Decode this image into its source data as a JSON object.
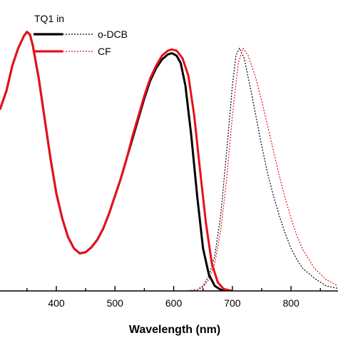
{
  "chart_data": {
    "type": "line",
    "title": "",
    "xlabel": "Wavelength (nm)",
    "ylabel": "",
    "xlim": [
      304,
      880
    ],
    "ylim": [
      0,
      1.06
    ],
    "x_ticks": [
      400,
      500,
      600,
      700,
      800
    ],
    "x_tick_labels": [
      "400",
      "500",
      "600",
      "700",
      "800"
    ],
    "y_ticks_shown": false,
    "grid": false,
    "legend": {
      "title": "TQ1 in",
      "placement": "top-left",
      "entries": [
        "o-DCB",
        "CF"
      ]
    },
    "series": [
      {
        "name": "o-DCB",
        "kind": "absorption",
        "color": "#000000",
        "style": "solid",
        "points": [
          [
            304,
            0.725
          ],
          [
            315,
            0.8
          ],
          [
            325,
            0.9
          ],
          [
            335,
            0.97
          ],
          [
            345,
            1.02
          ],
          [
            350,
            1.035
          ],
          [
            355,
            1.025
          ],
          [
            360,
            0.98
          ],
          [
            370,
            0.85
          ],
          [
            380,
            0.69
          ],
          [
            390,
            0.53
          ],
          [
            400,
            0.39
          ],
          [
            410,
            0.29
          ],
          [
            420,
            0.215
          ],
          [
            430,
            0.17
          ],
          [
            440,
            0.15
          ],
          [
            450,
            0.155
          ],
          [
            460,
            0.175
          ],
          [
            470,
            0.205
          ],
          [
            480,
            0.25
          ],
          [
            490,
            0.31
          ],
          [
            500,
            0.38
          ],
          [
            510,
            0.45
          ],
          [
            520,
            0.53
          ],
          [
            530,
            0.61
          ],
          [
            540,
            0.69
          ],
          [
            550,
            0.77
          ],
          [
            560,
            0.84
          ],
          [
            570,
            0.89
          ],
          [
            580,
            0.925
          ],
          [
            590,
            0.945
          ],
          [
            597,
            0.95
          ],
          [
            605,
            0.94
          ],
          [
            612,
            0.91
          ],
          [
            620,
            0.82
          ],
          [
            630,
            0.62
          ],
          [
            640,
            0.38
          ],
          [
            650,
            0.17
          ],
          [
            660,
            0.065
          ],
          [
            670,
            0.02
          ],
          [
            680,
            0.005
          ],
          [
            690,
            0.0
          ]
        ]
      },
      {
        "name": "CF",
        "kind": "absorption",
        "color": "#e8101a",
        "style": "solid",
        "points": [
          [
            304,
            0.725
          ],
          [
            315,
            0.8
          ],
          [
            325,
            0.9
          ],
          [
            335,
            0.97
          ],
          [
            345,
            1.02
          ],
          [
            350,
            1.035
          ],
          [
            355,
            1.025
          ],
          [
            360,
            0.98
          ],
          [
            370,
            0.85
          ],
          [
            380,
            0.69
          ],
          [
            390,
            0.53
          ],
          [
            400,
            0.39
          ],
          [
            410,
            0.29
          ],
          [
            420,
            0.215
          ],
          [
            430,
            0.17
          ],
          [
            440,
            0.15
          ],
          [
            450,
            0.155
          ],
          [
            460,
            0.175
          ],
          [
            470,
            0.205
          ],
          [
            480,
            0.25
          ],
          [
            490,
            0.31
          ],
          [
            500,
            0.38
          ],
          [
            510,
            0.45
          ],
          [
            520,
            0.53
          ],
          [
            530,
            0.62
          ],
          [
            540,
            0.7
          ],
          [
            550,
            0.78
          ],
          [
            560,
            0.85
          ],
          [
            570,
            0.9
          ],
          [
            580,
            0.94
          ],
          [
            590,
            0.96
          ],
          [
            597,
            0.965
          ],
          [
            605,
            0.96
          ],
          [
            615,
            0.93
          ],
          [
            625,
            0.86
          ],
          [
            635,
            0.7
          ],
          [
            645,
            0.48
          ],
          [
            655,
            0.27
          ],
          [
            665,
            0.11
          ],
          [
            675,
            0.035
          ],
          [
            685,
            0.008
          ],
          [
            700,
            0.0
          ]
        ]
      },
      {
        "name": "o-DCB",
        "kind": "emission",
        "color": "#000000",
        "style": "dotted",
        "points": [
          [
            620,
            0.0
          ],
          [
            640,
            0.005
          ],
          [
            650,
            0.02
          ],
          [
            660,
            0.06
          ],
          [
            670,
            0.14
          ],
          [
            680,
            0.3
          ],
          [
            690,
            0.55
          ],
          [
            700,
            0.82
          ],
          [
            706,
            0.94
          ],
          [
            712,
            0.97
          ],
          [
            720,
            0.93
          ],
          [
            730,
            0.82
          ],
          [
            740,
            0.7
          ],
          [
            750,
            0.58
          ],
          [
            760,
            0.47
          ],
          [
            770,
            0.38
          ],
          [
            780,
            0.3
          ],
          [
            790,
            0.23
          ],
          [
            800,
            0.17
          ],
          [
            810,
            0.125
          ],
          [
            820,
            0.09
          ],
          [
            840,
            0.05
          ],
          [
            860,
            0.02
          ],
          [
            880,
            0.01
          ]
        ]
      },
      {
        "name": "CF",
        "kind": "emission",
        "color": "#e8101a",
        "style": "dotted",
        "points": [
          [
            620,
            0.0
          ],
          [
            640,
            0.004
          ],
          [
            650,
            0.015
          ],
          [
            660,
            0.045
          ],
          [
            670,
            0.11
          ],
          [
            680,
            0.24
          ],
          [
            690,
            0.44
          ],
          [
            700,
            0.7
          ],
          [
            710,
            0.91
          ],
          [
            718,
            0.97
          ],
          [
            727,
            0.94
          ],
          [
            740,
            0.85
          ],
          [
            750,
            0.76
          ],
          [
            760,
            0.66
          ],
          [
            770,
            0.56
          ],
          [
            780,
            0.46
          ],
          [
            790,
            0.37
          ],
          [
            800,
            0.29
          ],
          [
            810,
            0.22
          ],
          [
            820,
            0.165
          ],
          [
            840,
            0.09
          ],
          [
            860,
            0.045
          ],
          [
            880,
            0.02
          ]
        ]
      }
    ]
  }
}
